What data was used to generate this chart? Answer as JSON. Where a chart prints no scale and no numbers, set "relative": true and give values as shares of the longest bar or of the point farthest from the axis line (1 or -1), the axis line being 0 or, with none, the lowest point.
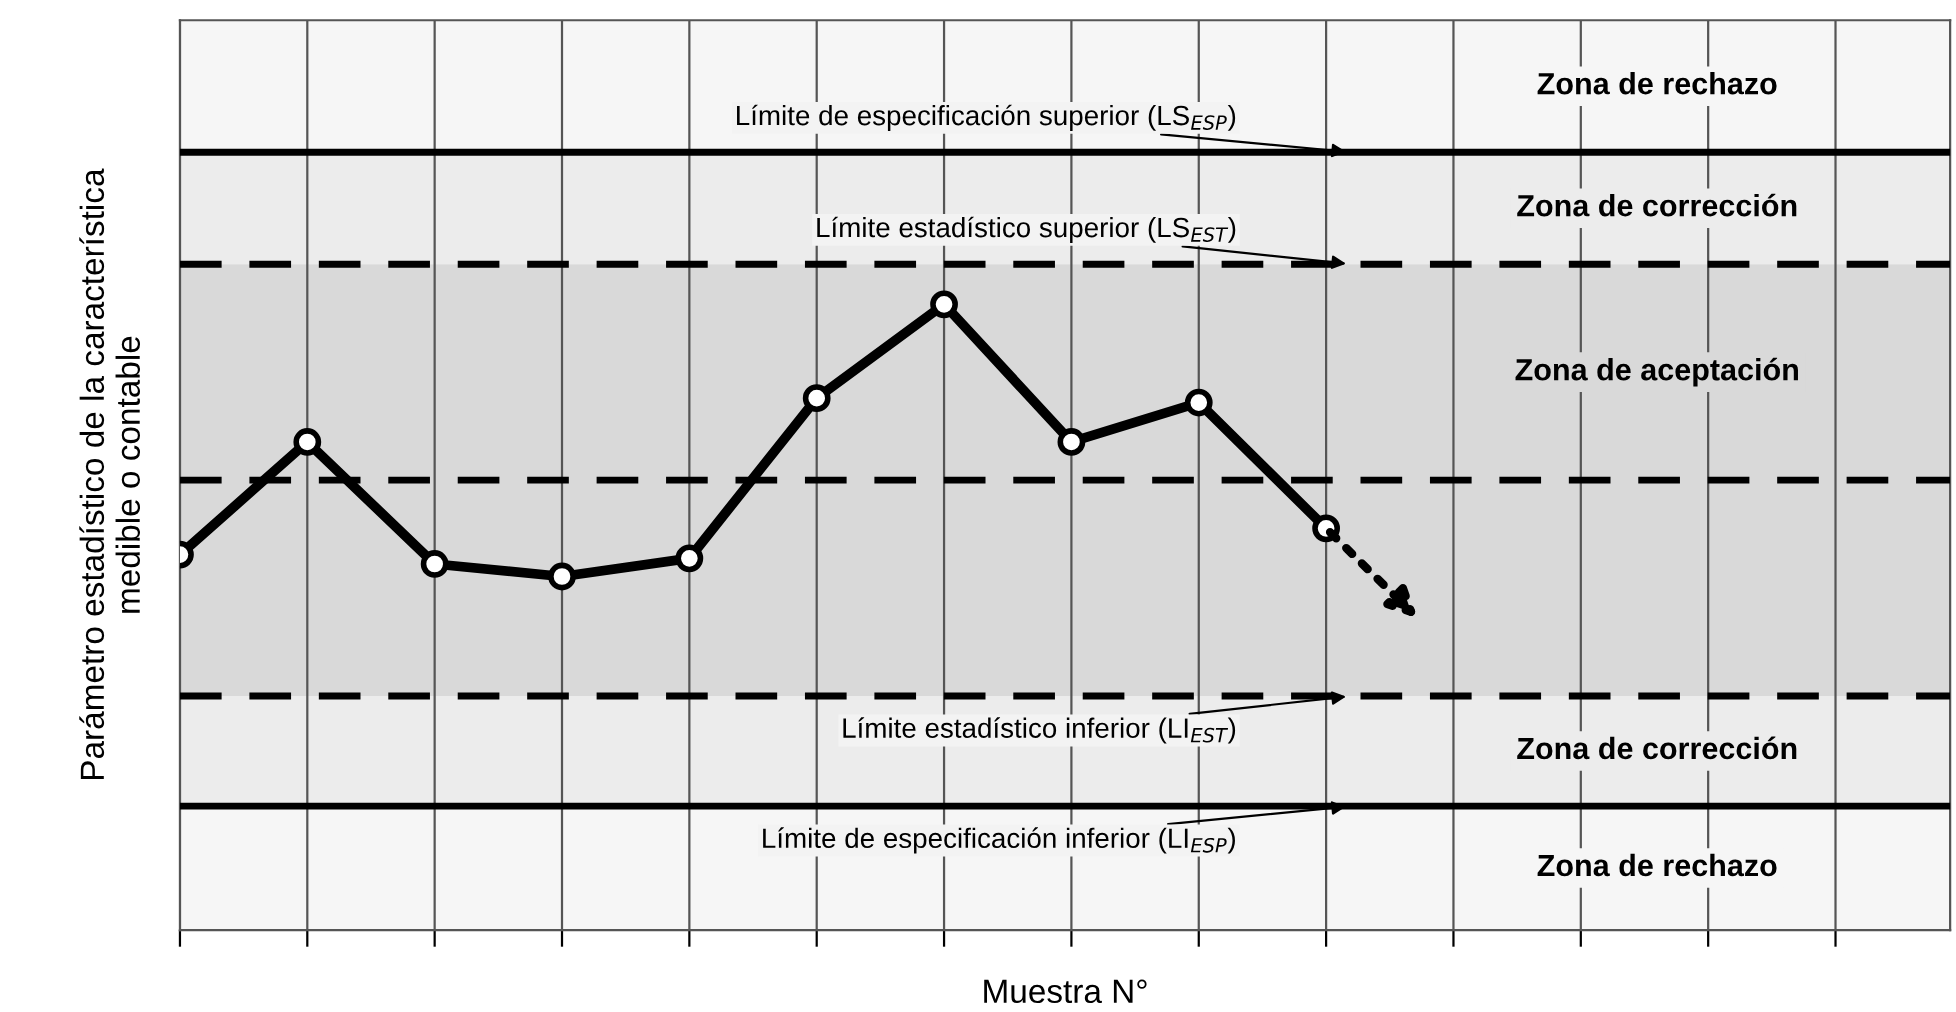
{
  "chart_data": {
    "type": "line",
    "relative": true,
    "xlabel": "Muestra N°",
    "ylabel": "Parámetro estadístico de la característica\nmedible o contable",
    "categories": [
      null,
      null,
      null,
      null,
      null,
      null,
      null,
      null,
      null,
      null,
      null,
      null,
      null,
      null
    ],
    "series": [
      {
        "color": "#000000",
        "values": [
          0.6,
          0.78,
          0.585,
          0.565,
          0.594,
          0.85,
          1.0,
          0.78,
          0.843,
          0.642,
          null,
          null,
          null,
          null
        ]
      }
    ],
    "marker": "circle",
    "line_style": "solid",
    "grid": "x",
    "ref_lines": [
      {
        "axis": "y",
        "value": 1.243,
        "label": "Límite de especificación superior (LS$_{ESP}$)",
        "line_style": "solid",
        "color": "#000000"
      },
      {
        "axis": "y",
        "value": 1.064,
        "label": "Límite estadístico superior (LS$_{EST}$)",
        "line_style": "dashed",
        "color": "#000000"
      },
      {
        "axis": "y",
        "value": 0.719,
        "line_style": "dashed",
        "color": "#000000"
      },
      {
        "axis": "y",
        "value": 0.374,
        "label": "Límite estadístico inferior (LI$_{EST}$)",
        "line_style": "dashed",
        "color": "#000000"
      },
      {
        "axis": "y",
        "value": 0.198,
        "label": "Límite de especificación inferior (LI$_{ESP}$)",
        "line_style": "solid",
        "color": "#000000"
      }
    ],
    "bands": [
      {
        "axis": "y",
        "from": 1.243,
        "to": 1.454,
        "label": "Zona de rechazo",
        "color": "#f6f6f6"
      },
      {
        "axis": "y",
        "from": 1.064,
        "to": 1.243,
        "label": "Zona de corrección",
        "color": "#ececec"
      },
      {
        "axis": "y",
        "from": 0.374,
        "to": 1.064,
        "label": "Zona de aceptación",
        "color": "#d9d9d9"
      },
      {
        "axis": "y",
        "from": 0.198,
        "to": 0.374,
        "label": "Zona de corrección",
        "color": "#ececec"
      },
      {
        "axis": "y",
        "from": 0.0,
        "to": 0.198,
        "label": "Zona de rechazo",
        "color": "#f6f6f6"
      }
    ]
  }
}
